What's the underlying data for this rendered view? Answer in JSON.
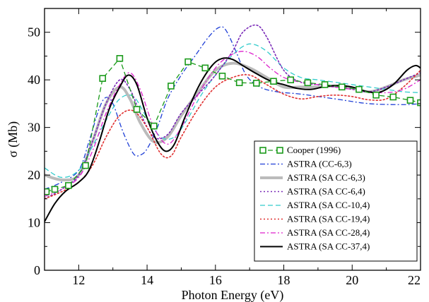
{
  "chart_data": {
    "type": "line",
    "xlabel": "Photon Energy (eV)",
    "ylabel": "σ (Mb)",
    "xlim": [
      11,
      22
    ],
    "ylim": [
      0,
      55
    ],
    "xticks": [
      12,
      14,
      16,
      18,
      20,
      22
    ],
    "yticks": [
      0,
      10,
      20,
      30,
      40,
      50
    ],
    "grid": false,
    "legend_position": "bottom-right",
    "series": [
      {
        "name": "Cooper (1996)",
        "color": "#1a9a1a",
        "style": "dash",
        "marker": "square",
        "x": [
          11.05,
          11.3,
          11.7,
          12.2,
          12.7,
          13.2,
          13.7,
          14.2,
          14.7,
          15.2,
          15.7,
          16.2,
          16.7,
          17.2,
          17.7,
          18.2,
          18.7,
          19.2,
          19.7,
          20.2,
          20.7,
          21.2,
          21.7,
          22.0
        ],
        "y": [
          16.5,
          17,
          17.8,
          22,
          40.3,
          44.5,
          33.8,
          30.3,
          38.7,
          43.8,
          42.5,
          40.8,
          39.4,
          39.3,
          39.7,
          40.0,
          39.4,
          39.0,
          38.5,
          38.0,
          36.8,
          36.4,
          35.7,
          35.2
        ]
      },
      {
        "name": "ASTRA (CC-6,3)",
        "color": "#1f3fd6",
        "style": "dashdot",
        "x": [
          11,
          11.5,
          12,
          12.3,
          12.6,
          12.8,
          13.0,
          13.3,
          13.6,
          13.8,
          14.0,
          14.3,
          14.6,
          15.0,
          15.4,
          15.8,
          16.1,
          16.3,
          16.6,
          16.9,
          17.3,
          17.8,
          18.5,
          19.5,
          20.5,
          21.5,
          22
        ],
        "y": [
          17,
          18.5,
          21,
          27,
          34,
          36.3,
          35,
          29,
          24.5,
          24.2,
          25.5,
          30,
          36,
          41,
          45,
          49,
          51,
          50.5,
          46,
          41,
          38.5,
          37.5,
          37,
          36,
          35,
          34.8,
          35
        ]
      },
      {
        "name": "ASTRA (SA CC-6,3)",
        "color": "#bbbbbb",
        "style": "solid-thick",
        "x": [
          11,
          11.5,
          12,
          12.4,
          12.8,
          13.2,
          13.5,
          13.8,
          14.2,
          14.6,
          15.0,
          15.5,
          16.0,
          16.5,
          17.0,
          17.5,
          18.0,
          18.5,
          19.0,
          19.5,
          20.0,
          20.5,
          21.0,
          21.5,
          22
        ],
        "y": [
          20,
          19,
          20,
          27,
          35,
          38.5,
          36,
          31,
          27,
          28,
          32.5,
          37.5,
          42,
          43.5,
          42.5,
          40.5,
          38.5,
          38.5,
          38.5,
          38.7,
          38.3,
          37.5,
          38.5,
          40,
          41
        ]
      },
      {
        "name": "ASTRA (SA CC-6,4)",
        "color": "#7a2ab8",
        "style": "dot",
        "x": [
          11,
          11.5,
          12,
          12.4,
          12.8,
          13.2,
          13.5,
          13.8,
          14.2,
          14.6,
          15.0,
          15.5,
          16.0,
          16.5,
          16.8,
          17.2,
          17.5,
          18.0,
          18.5,
          19.0,
          19.5,
          20.0,
          20.5,
          21.0,
          21.5,
          22
        ],
        "y": [
          15,
          17,
          20,
          27,
          35,
          40,
          38,
          33,
          28,
          28.5,
          33,
          37,
          41,
          46,
          50,
          51.5,
          49,
          42,
          39.5,
          39,
          38.5,
          38,
          37.5,
          38.5,
          40,
          41.5
        ]
      },
      {
        "name": "ASTRA (SA CC-10,4)",
        "color": "#33cccc",
        "style": "dash",
        "x": [
          11,
          11.5,
          12,
          12.4,
          12.8,
          13.2,
          13.6,
          14.0,
          14.4,
          14.8,
          15.2,
          15.6,
          16.0,
          16.4,
          16.8,
          17.1,
          17.5,
          18.0,
          18.5,
          19.0,
          19.5,
          20.0,
          20.5,
          21.0,
          21.5,
          22
        ],
        "y": [
          21.5,
          19.5,
          21,
          26,
          31.5,
          36,
          36.5,
          32,
          28,
          28,
          32,
          37,
          41,
          44.5,
          47,
          47.5,
          46,
          42.5,
          40.5,
          40,
          39.5,
          39,
          38.5,
          38,
          37.5,
          37.3
        ]
      },
      {
        "name": "ASTRA (SA CC-19,4)",
        "color": "#e03030",
        "style": "dot",
        "x": [
          11,
          11.5,
          12,
          12.4,
          12.8,
          13.2,
          13.6,
          14.0,
          14.4,
          14.7,
          15.0,
          15.5,
          16.0,
          16.5,
          17.0,
          17.5,
          18.0,
          18.5,
          19.0,
          19.5,
          20.0,
          20.5,
          21.0,
          21.5,
          22
        ],
        "y": [
          15,
          16.5,
          18.5,
          22,
          28,
          32.5,
          33.5,
          30,
          24.5,
          24,
          28,
          34,
          38.5,
          40.5,
          41,
          39,
          37,
          36,
          36.5,
          36.8,
          36.5,
          35.8,
          36,
          38.5,
          42
        ]
      },
      {
        "name": "ASTRA (SA CC-28,4)",
        "color": "#dd22cc",
        "style": "dashdot",
        "x": [
          11,
          11.5,
          12,
          12.4,
          12.8,
          13.2,
          13.5,
          13.8,
          14.2,
          14.6,
          15.0,
          15.5,
          16.0,
          16.4,
          16.8,
          17.2,
          17.6,
          18.0,
          18.5,
          19.0,
          19.5,
          20.0,
          20.5,
          21.0,
          21.5,
          22
        ],
        "y": [
          15.5,
          17,
          19.5,
          25,
          33,
          39,
          41.5,
          38,
          30,
          26.5,
          30,
          37,
          42.5,
          45,
          46,
          45,
          42.5,
          40.5,
          39.5,
          39,
          38.5,
          38,
          37.5,
          37.3,
          38,
          40
        ]
      },
      {
        "name": "ASTRA (SA CC-37,4)",
        "color": "#000000",
        "style": "solid",
        "x": [
          11,
          11.3,
          11.6,
          12,
          12.3,
          12.6,
          12.9,
          13.2,
          13.45,
          13.7,
          14.0,
          14.3,
          14.55,
          14.8,
          15.1,
          15.5,
          15.9,
          16.2,
          16.5,
          16.8,
          17.2,
          17.6,
          18.0,
          18.4,
          18.8,
          19.2,
          19.6,
          20.0,
          20.4,
          20.8,
          21.2,
          21.6,
          21.85,
          22
        ],
        "y": [
          10.2,
          14,
          16.5,
          18.5,
          21,
          27,
          34,
          38.5,
          41,
          39,
          32,
          27,
          25,
          26.5,
          32,
          38.5,
          43,
          44.5,
          44.3,
          43,
          41.3,
          39.8,
          39,
          38.2,
          38,
          38.6,
          38.8,
          38.5,
          37.6,
          37.4,
          39,
          42,
          43,
          42.5
        ]
      }
    ]
  }
}
